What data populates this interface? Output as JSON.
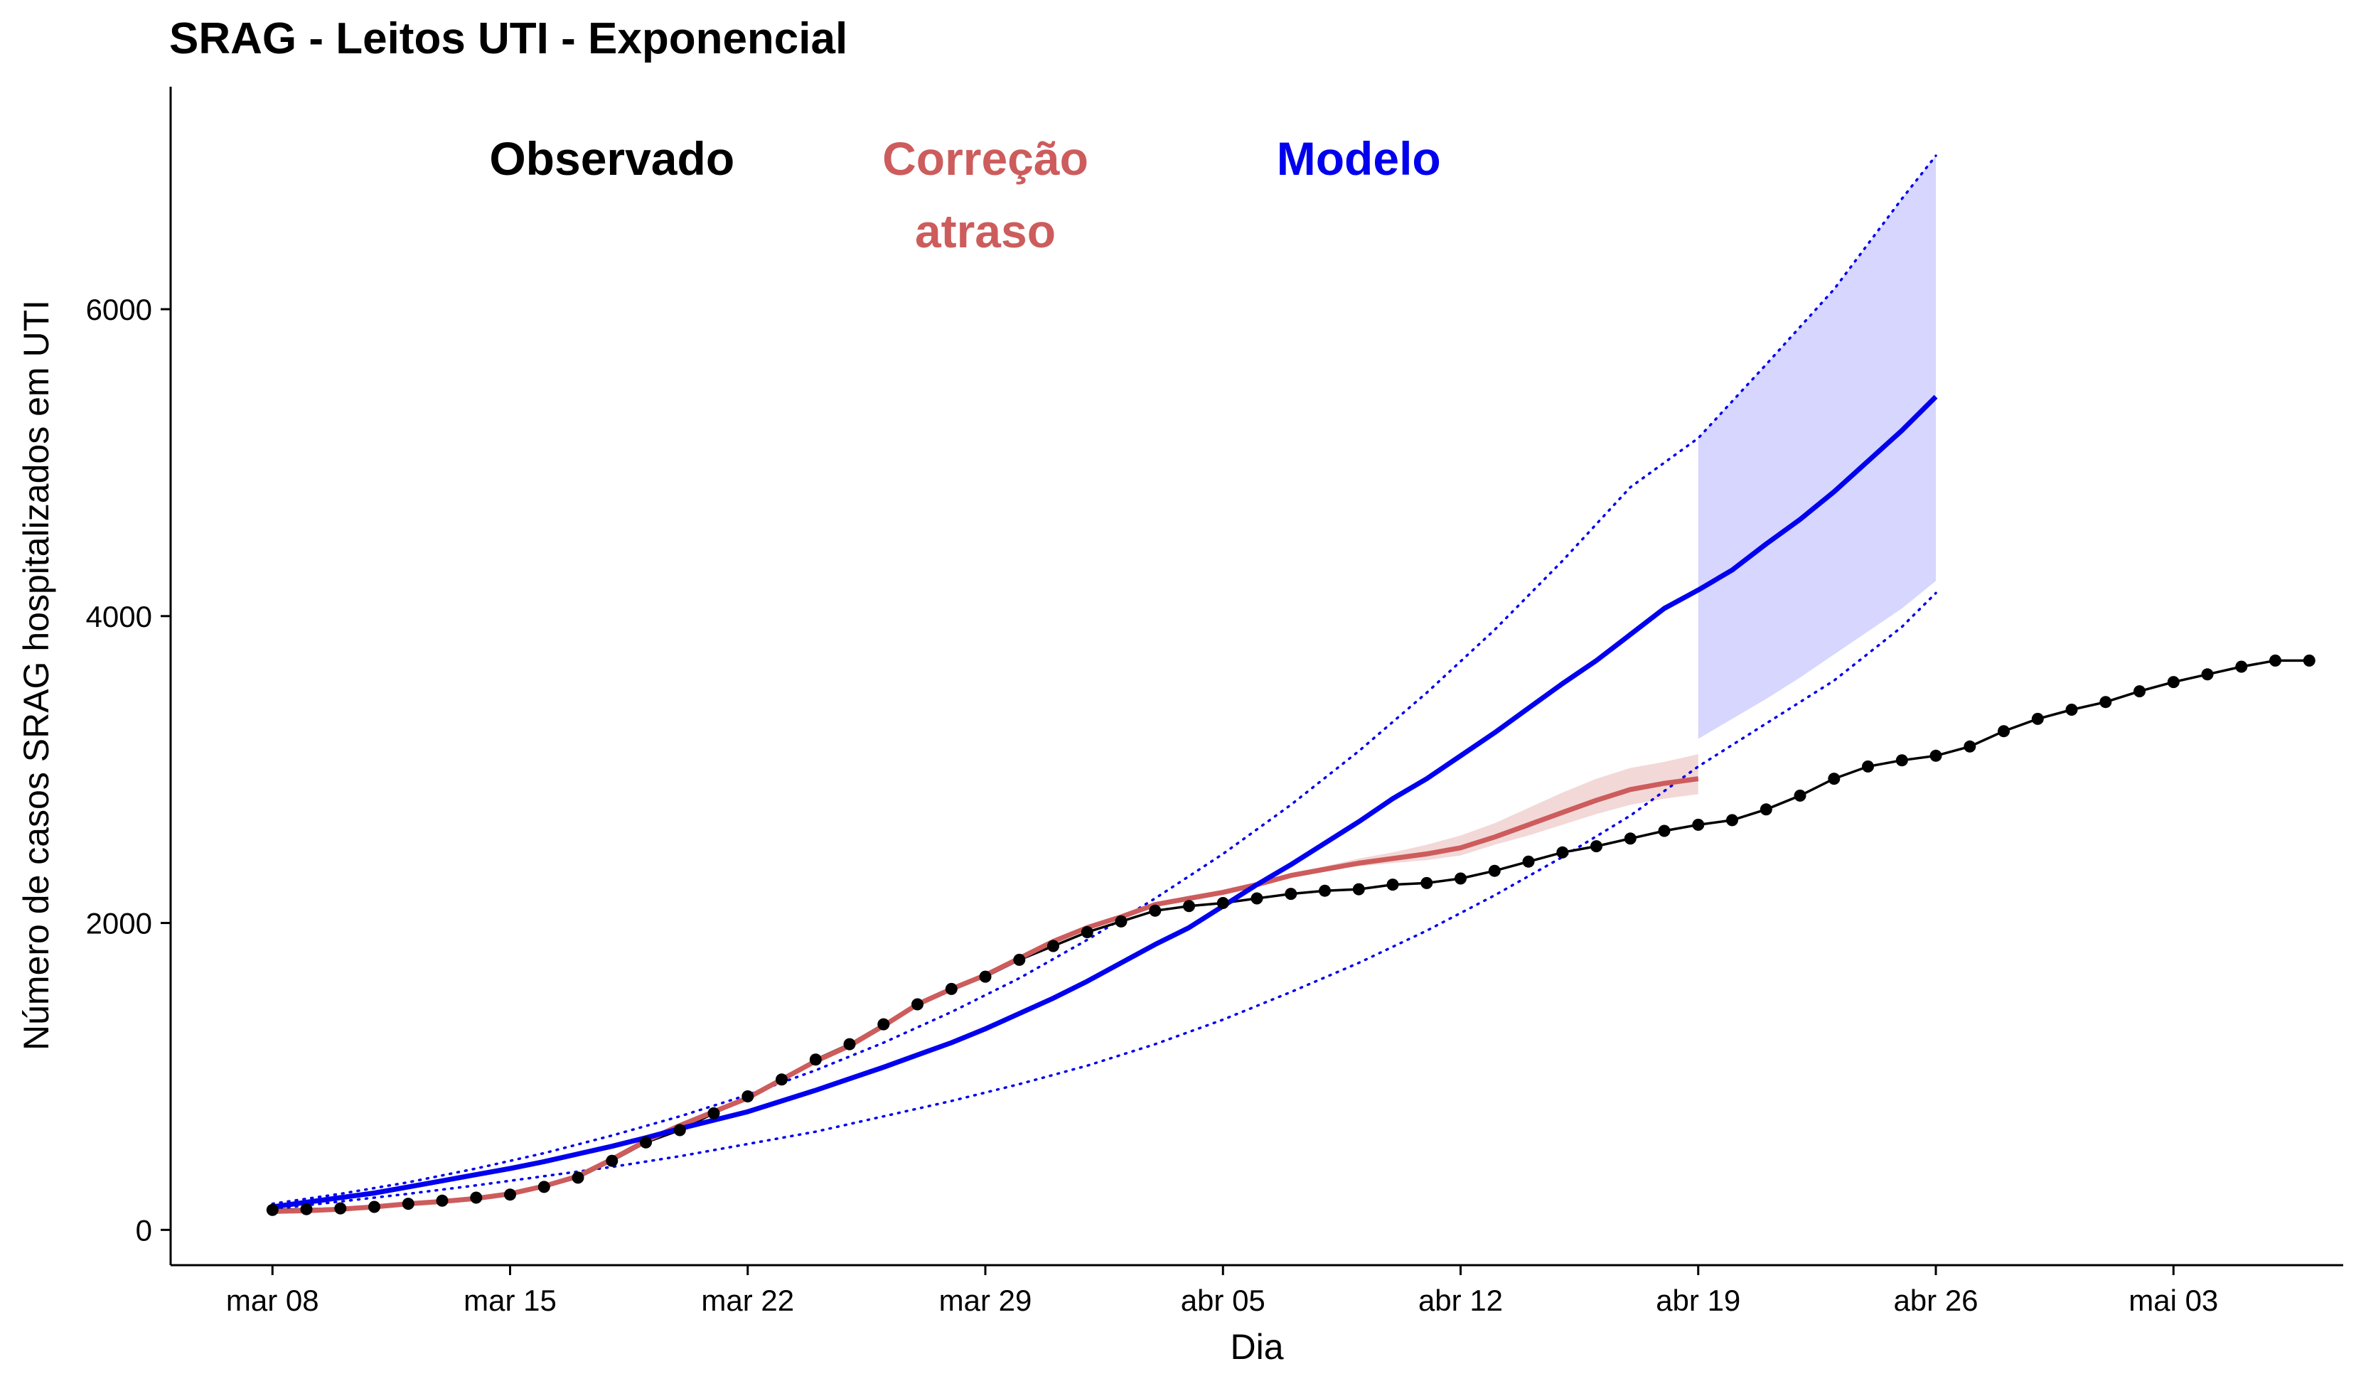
{
  "chart_data": {
    "type": "line",
    "title": "SRAG - Leitos UTI - Exponencial",
    "xlabel": "Dia",
    "ylabel": "Número de casos SRAG hospitalizados em UTI",
    "xlim": [
      -3,
      61
    ],
    "ylim": [
      -230,
      7450
    ],
    "x_ticks": [
      {
        "day": 0,
        "label": "mar 08"
      },
      {
        "day": 7,
        "label": "mar 15"
      },
      {
        "day": 14,
        "label": "mar 22"
      },
      {
        "day": 21,
        "label": "mar 29"
      },
      {
        "day": 28,
        "label": "abr 05"
      },
      {
        "day": 35,
        "label": "abr 12"
      },
      {
        "day": 42,
        "label": "abr 19"
      },
      {
        "day": 49,
        "label": "abr 26"
      },
      {
        "day": 56,
        "label": "mai 03"
      }
    ],
    "y_ticks": [
      0,
      2000,
      4000,
      6000
    ],
    "annotations": [
      {
        "lines": [
          "Observado"
        ],
        "color": "#000000",
        "day": 10
      },
      {
        "lines": [
          "Correção",
          "atraso"
        ],
        "color": "#cd5c5c",
        "day": 21
      },
      {
        "lines": [
          "Modelo"
        ],
        "color": "#0000ee",
        "day": 32
      }
    ],
    "series": [
      {
        "name": "Observado",
        "color": "#000000",
        "style": "line+points",
        "x": [
          0,
          1,
          2,
          3,
          4,
          5,
          6,
          7,
          8,
          9,
          10,
          11,
          12,
          13,
          14,
          15,
          16,
          17,
          18,
          19,
          20,
          21,
          22,
          23,
          24,
          25,
          26,
          27,
          28,
          29,
          30,
          31,
          32,
          33,
          34,
          35,
          36,
          37,
          38,
          39,
          40,
          41,
          42,
          43,
          44,
          45,
          46,
          47,
          48,
          49,
          50,
          51,
          52,
          53,
          54,
          55,
          56,
          57,
          58,
          59,
          60
        ],
        "y": [
          130,
          135,
          140,
          150,
          170,
          190,
          210,
          230,
          280,
          340,
          450,
          570,
          650,
          760,
          870,
          980,
          1110,
          1210,
          1340,
          1470,
          1570,
          1650,
          1760,
          1850,
          1940,
          2010,
          2080,
          2110,
          2130,
          2160,
          2190,
          2210,
          2220,
          2250,
          2260,
          2290,
          2340,
          2400,
          2460,
          2500,
          2550,
          2600,
          2640,
          2670,
          2740,
          2830,
          2940,
          3020,
          3060,
          3090,
          3150,
          3250,
          3330,
          3390,
          3440,
          3510,
          3570,
          3620,
          3670,
          3710,
          3710
        ]
      },
      {
        "name": "Correção atraso",
        "color": "#cd5c5c",
        "style": "line",
        "x": [
          0,
          1,
          2,
          3,
          4,
          5,
          6,
          7,
          8,
          9,
          10,
          11,
          12,
          13,
          14,
          15,
          16,
          17,
          18,
          19,
          20,
          21,
          22,
          23,
          24,
          25,
          26,
          27,
          28,
          29,
          30,
          31,
          32,
          33,
          34,
          35,
          36,
          37,
          38,
          39,
          40,
          41,
          42
        ],
        "y": [
          120,
          125,
          135,
          150,
          170,
          185,
          205,
          235,
          285,
          350,
          460,
          580,
          680,
          770,
          860,
          980,
          1100,
          1200,
          1330,
          1470,
          1570,
          1660,
          1770,
          1880,
          1970,
          2040,
          2120,
          2160,
          2200,
          2250,
          2310,
          2350,
          2390,
          2420,
          2450,
          2490,
          2560,
          2640,
          2720,
          2800,
          2870,
          2910,
          2940
        ],
        "band_lower": [
          120,
          125,
          135,
          150,
          170,
          185,
          205,
          235,
          285,
          350,
          460,
          580,
          680,
          770,
          860,
          980,
          1100,
          1200,
          1330,
          1470,
          1570,
          1660,
          1770,
          1880,
          1970,
          2040,
          2120,
          2160,
          2200,
          2250,
          2300,
          2340,
          2370,
          2390,
          2410,
          2440,
          2510,
          2570,
          2640,
          2710,
          2770,
          2810,
          2840
        ],
        "band_upper": [
          120,
          125,
          135,
          150,
          170,
          185,
          205,
          235,
          285,
          350,
          460,
          580,
          680,
          770,
          860,
          980,
          1100,
          1200,
          1330,
          1470,
          1570,
          1660,
          1770,
          1880,
          1970,
          2040,
          2120,
          2160,
          2200,
          2260,
          2320,
          2370,
          2420,
          2460,
          2510,
          2570,
          2650,
          2750,
          2850,
          2940,
          3010,
          3050,
          3100
        ]
      },
      {
        "name": "Modelo",
        "color": "#0000ee",
        "style": "line",
        "x": [
          0,
          1,
          2,
          3,
          4,
          5,
          6,
          7,
          8,
          9,
          10,
          11,
          12,
          13,
          14,
          15,
          16,
          17,
          18,
          19,
          20,
          21,
          22,
          23,
          24,
          25,
          26,
          27,
          28,
          29,
          30,
          31,
          32,
          33,
          34,
          35,
          36,
          37,
          38,
          39,
          40,
          41,
          42,
          43,
          44,
          45,
          46,
          47,
          48,
          49
        ],
        "y": [
          150,
          180,
          210,
          240,
          280,
          320,
          360,
          400,
          445,
          495,
          545,
          600,
          660,
          715,
          770,
          840,
          910,
          985,
          1060,
          1140,
          1220,
          1310,
          1410,
          1510,
          1620,
          1740,
          1860,
          1970,
          2110,
          2250,
          2380,
          2520,
          2660,
          2810,
          2940,
          3090,
          3240,
          3400,
          3560,
          3710,
          3880,
          4050,
          4170,
          4300,
          4470,
          4630,
          4810,
          5010,
          5210,
          5430
        ]
      },
      {
        "name": "Modelo intervalo",
        "color": "#0000ee",
        "style": "dotted",
        "x": [
          0,
          2,
          4,
          6,
          8,
          10,
          12,
          14,
          16,
          18,
          20,
          22,
          24,
          26,
          28,
          30,
          32,
          34,
          36,
          38,
          40,
          42,
          44,
          46,
          48,
          49
        ],
        "lower": [
          135,
          185,
          235,
          290,
          350,
          410,
          480,
          560,
          640,
          740,
          840,
          950,
          1070,
          1210,
          1370,
          1550,
          1740,
          1950,
          2180,
          2430,
          2700,
          3020,
          3300,
          3580,
          3930,
          4150
        ],
        "upper": [
          170,
          235,
          310,
          400,
          500,
          615,
          740,
          880,
          1040,
          1220,
          1420,
          1640,
          1890,
          2160,
          2450,
          2770,
          3120,
          3500,
          3910,
          4360,
          4840,
          5160,
          5640,
          6130,
          6720,
          7000
        ]
      },
      {
        "name": "Modelo previsão",
        "color": "#d6d6ff",
        "style": "band",
        "x": [
          42,
          43,
          44,
          45,
          46,
          47,
          48,
          49
        ],
        "lower": [
          3200,
          3330,
          3460,
          3600,
          3750,
          3900,
          4050,
          4230
        ],
        "upper": [
          5160,
          5400,
          5640,
          5880,
          6130,
          6420,
          6720,
          7000
        ]
      }
    ]
  }
}
